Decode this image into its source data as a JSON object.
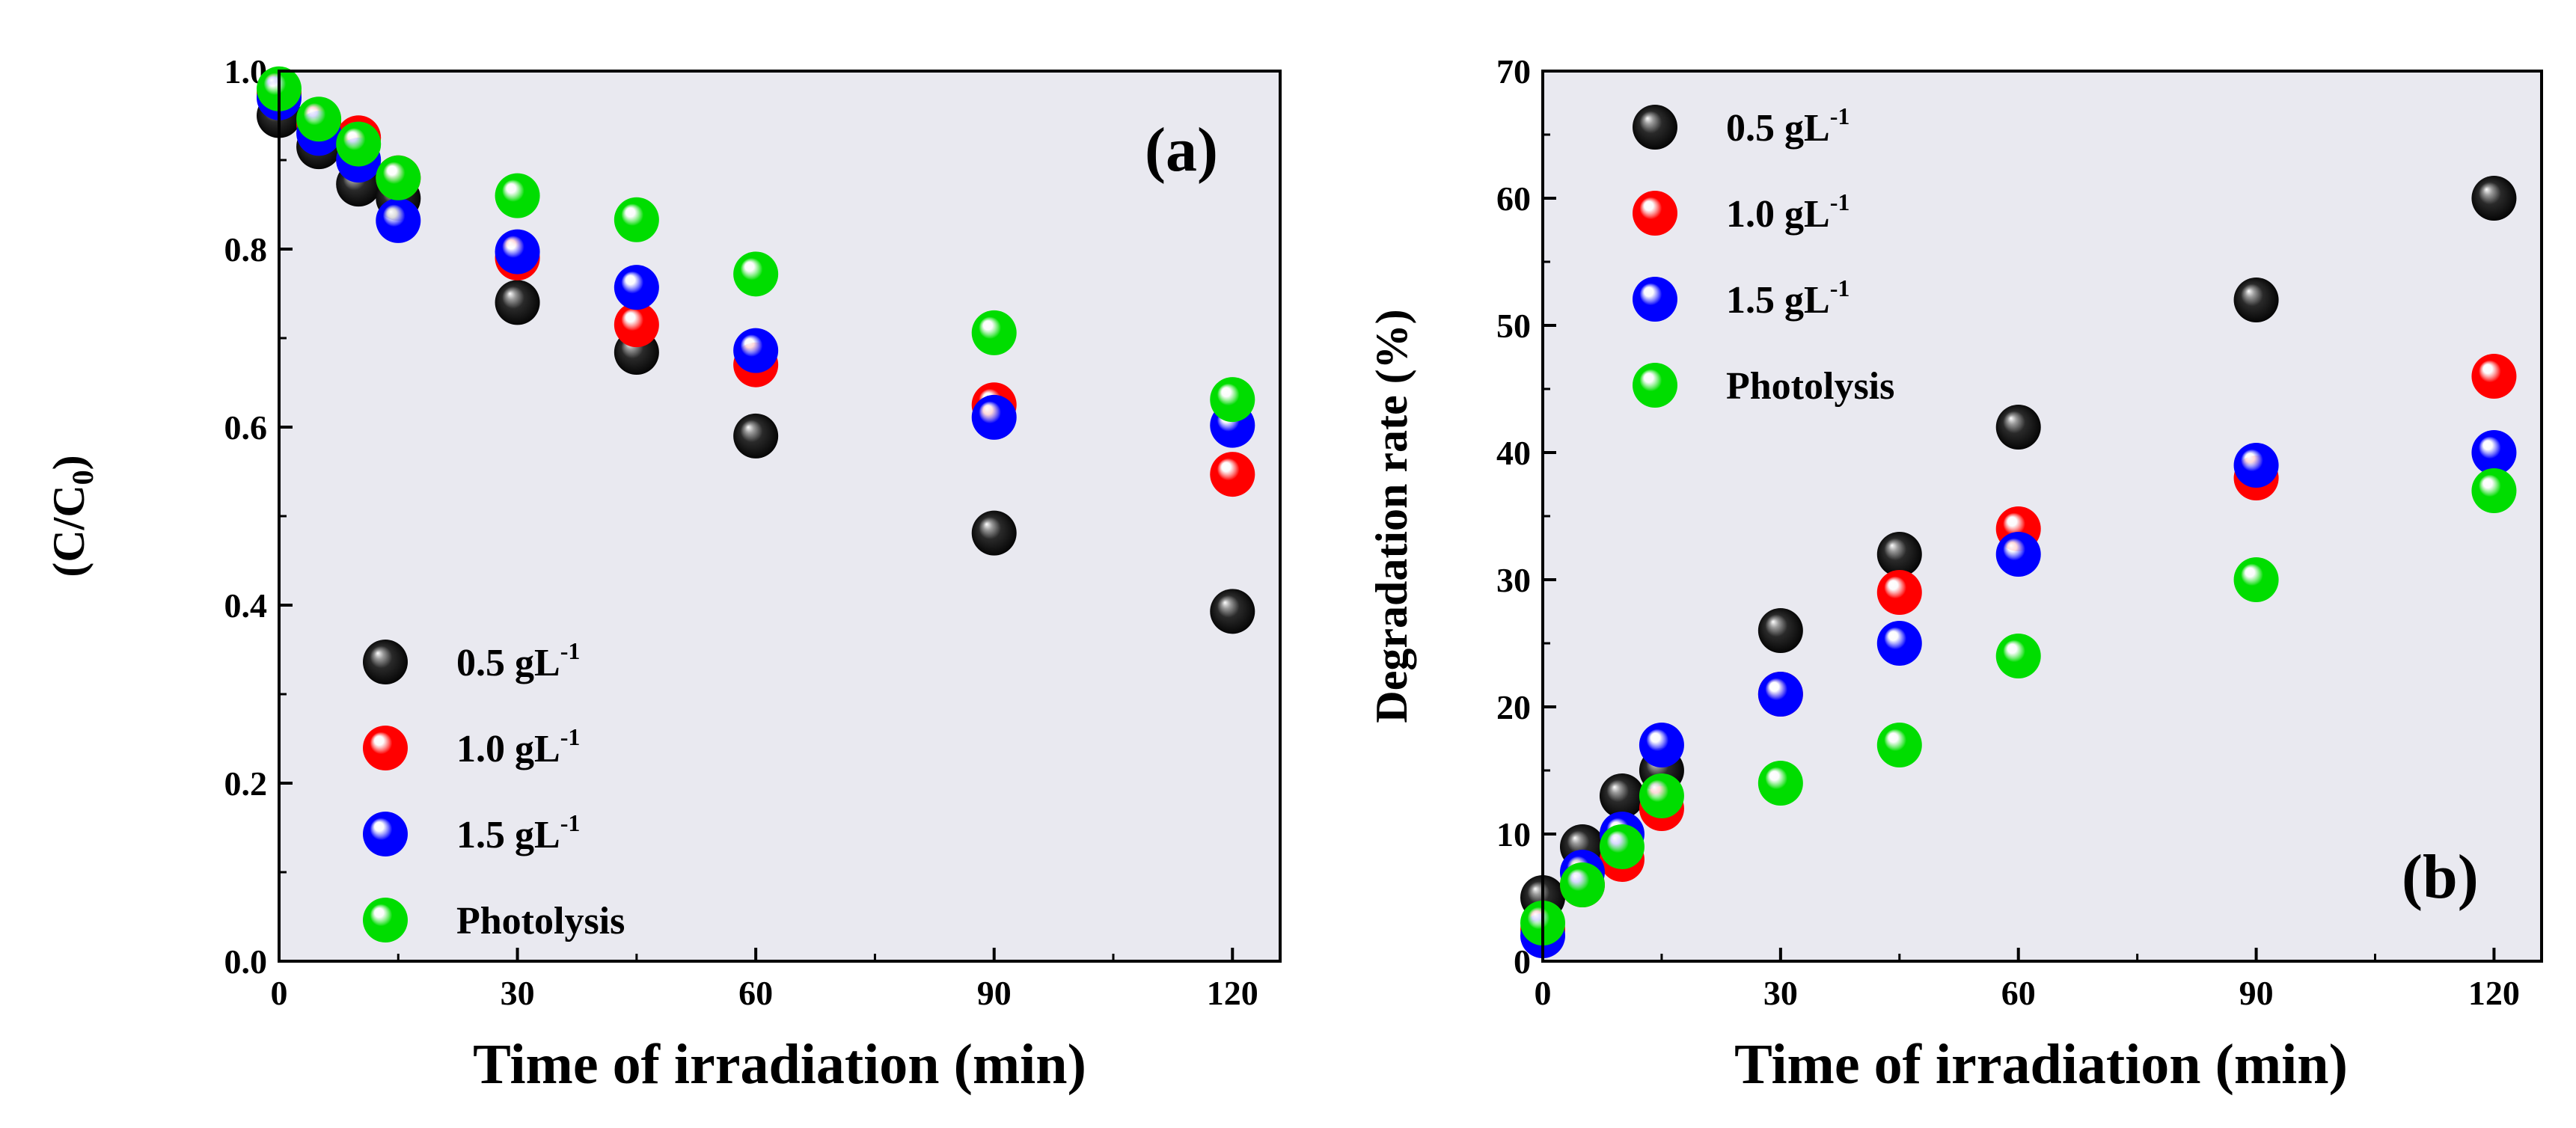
{
  "colors": {
    "plot_bg": "#e9e9f0",
    "axis": "#000000",
    "series": {
      "0.5 gL-1": "#000000",
      "1.0 gL-1": "#ff0000",
      "1.5 gL-1": "#0000ff",
      "Photolysis": "#00dd00"
    }
  },
  "chart_data": [
    {
      "id": "a",
      "type": "scatter",
      "panel_label": "(a)",
      "xlabel": "Time of irradiation (min)",
      "ylabel": {
        "prefix": "(C/C",
        "sub": "0",
        "suffix": ")"
      },
      "xlim": [
        0,
        126
      ],
      "ylim": [
        0,
        1.0
      ],
      "xticks": [
        0,
        30,
        60,
        90,
        120
      ],
      "yticks": [
        0.0,
        0.2,
        0.4,
        0.6,
        0.8,
        1.0
      ],
      "xticklabels": [
        "0",
        "30",
        "60",
        "90",
        "120"
      ],
      "yticklabels": [
        "0.0",
        "0.2",
        "0.4",
        "0.6",
        "0.8",
        "1.0"
      ],
      "legend_position": "bottom-left",
      "series": [
        {
          "name": "0.5 gL-1",
          "label_main": "0.5 gL",
          "label_sup": "-1",
          "x": [
            0,
            5,
            10,
            15,
            30,
            45,
            60,
            90,
            120
          ],
          "y": [
            0.95,
            0.915,
            0.873,
            0.857,
            0.74,
            0.684,
            0.59,
            0.481,
            0.393
          ]
        },
        {
          "name": "1.0 gL-1",
          "label_main": "1.0 gL",
          "label_sup": "-1",
          "x": [
            0,
            5,
            10,
            15,
            30,
            45,
            60,
            90,
            120
          ],
          "y": [
            0.975,
            0.94,
            0.925,
            0.88,
            0.79,
            0.715,
            0.67,
            0.625,
            0.547
          ]
        },
        {
          "name": "1.5 gL-1",
          "label_main": "1.5 gL",
          "label_sup": "-1",
          "x": [
            0,
            5,
            10,
            15,
            30,
            45,
            60,
            90,
            120
          ],
          "y": [
            0.97,
            0.93,
            0.9,
            0.832,
            0.797,
            0.757,
            0.686,
            0.611,
            0.602
          ]
        },
        {
          "name": "Photolysis",
          "label_main": "Photolysis",
          "label_sup": "",
          "x": [
            0,
            5,
            10,
            15,
            30,
            45,
            60,
            90,
            120
          ],
          "y": [
            0.98,
            0.946,
            0.918,
            0.88,
            0.86,
            0.833,
            0.772,
            0.706,
            0.631
          ]
        }
      ]
    },
    {
      "id": "b",
      "type": "scatter",
      "panel_label": "(b)",
      "xlabel": "Time of irradiation (min)",
      "ylabel": {
        "prefix": "Degradation rate  (%)",
        "sub": "",
        "suffix": ""
      },
      "xlim": [
        0,
        126
      ],
      "ylim": [
        0,
        70
      ],
      "xticks": [
        0,
        30,
        60,
        90,
        120
      ],
      "yticks": [
        0,
        10,
        20,
        30,
        40,
        50,
        60,
        70
      ],
      "xticklabels": [
        "0",
        "30",
        "60",
        "90",
        "120"
      ],
      "yticklabels": [
        "0",
        "10",
        "20",
        "30",
        "40",
        "50",
        "60",
        "70"
      ],
      "legend_position": "top-left",
      "series": [
        {
          "name": "0.5 gL-1",
          "label_main": "0.5 gL",
          "label_sup": "-1",
          "x": [
            0,
            5,
            10,
            15,
            30,
            45,
            60,
            90,
            120
          ],
          "y": [
            5,
            9,
            13,
            15,
            26,
            32,
            42,
            52,
            60
          ]
        },
        {
          "name": "1.0 gL-1",
          "label_main": "1.0 gL",
          "label_sup": "-1",
          "x": [
            0,
            5,
            10,
            15,
            30,
            45,
            60,
            90,
            120
          ],
          "y": [
            2.5,
            6,
            8,
            12,
            21,
            29,
            34,
            38,
            46
          ]
        },
        {
          "name": "1.5 gL-1",
          "label_main": "1.5 gL",
          "label_sup": "-1",
          "x": [
            0,
            5,
            10,
            15,
            30,
            45,
            60,
            90,
            120
          ],
          "y": [
            2,
            7,
            10,
            17,
            21,
            25,
            32,
            39,
            40
          ]
        },
        {
          "name": "Photolysis",
          "label_main": "Photolysis",
          "label_sup": "",
          "x": [
            0,
            5,
            10,
            15,
            30,
            45,
            60,
            90,
            120
          ],
          "y": [
            3,
            6,
            9,
            13,
            14,
            17,
            24,
            30,
            37
          ]
        }
      ]
    }
  ]
}
